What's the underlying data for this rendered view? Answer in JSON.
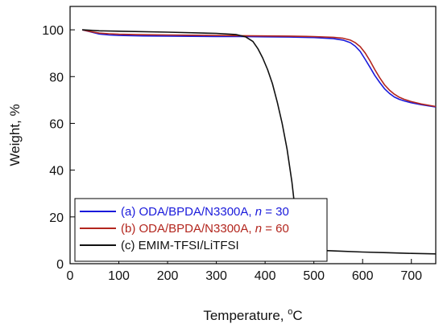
{
  "chart_data": {
    "type": "line",
    "xlabel": "Temperature, ",
    "xlabel_unit": "C",
    "xlabel_unit_sup": "o",
    "ylabel": "Weight, %",
    "xlim": [
      0,
      750
    ],
    "ylim": [
      0,
      110
    ],
    "xticks": [
      0,
      100,
      200,
      300,
      400,
      500,
      600,
      700
    ],
    "yticks": [
      0,
      20,
      40,
      60,
      80,
      100
    ],
    "grid": false,
    "legend_position": "bottom-left",
    "series": [
      {
        "name": "(a) ODA/BPDA/N3300A, ",
        "name_italic": "n",
        "name_suffix": " = 30",
        "color": "#1a1adb",
        "x": [
          25,
          40,
          60,
          80,
          100,
          150,
          200,
          250,
          300,
          350,
          400,
          450,
          500,
          540,
          560,
          575,
          585,
          595,
          605,
          615,
          625,
          635,
          645,
          655,
          665,
          675,
          685,
          700,
          720,
          750
        ],
        "y": [
          100,
          99.2,
          98.2,
          97.8,
          97.6,
          97.4,
          97.3,
          97.2,
          97.1,
          97.1,
          97.0,
          96.9,
          96.7,
          96.2,
          95.6,
          94.5,
          93.0,
          90.8,
          87.5,
          84.0,
          80.5,
          77.5,
          74.8,
          72.8,
          71.3,
          70.3,
          69.6,
          68.8,
          68.0,
          67.0
        ]
      },
      {
        "name": "(b) ODA/BPDA/N3300A, ",
        "name_italic": "n",
        "name_suffix": " = 60",
        "color": "#b3261e",
        "x": [
          25,
          40,
          60,
          80,
          100,
          150,
          200,
          250,
          300,
          350,
          400,
          450,
          500,
          540,
          560,
          575,
          585,
          595,
          605,
          615,
          625,
          635,
          645,
          655,
          665,
          675,
          685,
          700,
          720,
          750
        ],
        "y": [
          100,
          99.3,
          98.6,
          98.3,
          98.1,
          97.9,
          97.8,
          97.7,
          97.6,
          97.5,
          97.4,
          97.3,
          97.1,
          96.8,
          96.4,
          95.6,
          94.5,
          92.8,
          90.2,
          86.8,
          83.0,
          79.5,
          76.5,
          74.2,
          72.5,
          71.2,
          70.3,
          69.3,
          68.3,
          67.2
        ]
      },
      {
        "name": "(c) EMIM-TFSI/LiTFSI",
        "color": "#111111",
        "x": [
          25,
          60,
          100,
          200,
          300,
          340,
          360,
          375,
          385,
          395,
          405,
          415,
          425,
          435,
          445,
          455,
          462,
          468,
          472,
          478,
          485,
          500,
          550,
          600,
          650,
          700,
          750
        ],
        "y": [
          100,
          99.6,
          99.4,
          99.0,
          98.5,
          98.0,
          97.0,
          95.0,
          92.0,
          88.0,
          83.0,
          77.0,
          69.0,
          60.0,
          49.0,
          35.0,
          22.0,
          12.0,
          8.0,
          6.5,
          6.0,
          5.8,
          5.4,
          5.0,
          4.7,
          4.4,
          4.2
        ]
      }
    ]
  }
}
